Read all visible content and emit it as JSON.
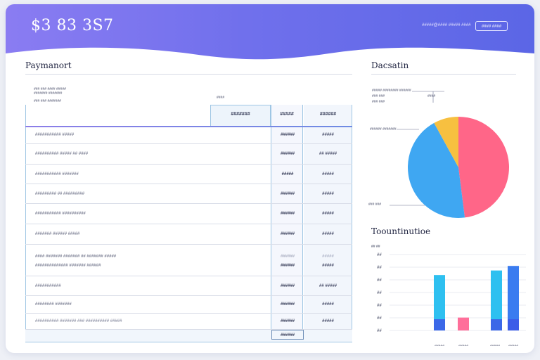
{
  "header": {
    "brand": "$3 83 3S7",
    "meta": "#####@#### ##### ####",
    "button_label": "#### ####"
  },
  "payment": {
    "title": "Paymanort",
    "meta_lines": [
      "### ### #### #####",
      "####### #######",
      "### ### #######"
    ],
    "col_tag": "####",
    "headers": [
      "#######",
      "#####",
      "######"
    ],
    "rows": [
      {
        "name": "########### #####",
        "a": "######",
        "b": "#####"
      },
      {
        "name": "########## #####   ## ####",
        "a": "######",
        "b": "## #####"
      },
      {
        "name": "########### #######",
        "a": "#####",
        "b": "#####"
      },
      {
        "name": "######### ## #########",
        "a": "######",
        "b": "#####"
      },
      {
        "name": "########### ##########",
        "a": "######",
        "b": "#####"
      },
      {
        "name": "####### ###### #####",
        "a": "######",
        "b": "#####"
      },
      {
        "name": "#### ####### ####### ## ####### #####",
        "name2": "############## ####### ######",
        "a": "######",
        "b": "#####"
      },
      {
        "name": "###########",
        "a": "######",
        "b": "## #####"
      },
      {
        "name": "######## #######",
        "a": "######",
        "b": "#####"
      },
      {
        "name": "##########  ####### ### ########## #####",
        "a": "######",
        "b": "#####"
      },
      {
        "name": "",
        "a": "######",
        "b": ""
      }
    ]
  },
  "donation": {
    "title": "Dacsatin",
    "labels": [
      "##### ######## ######",
      "####",
      "###### #######",
      "### ###"
    ],
    "slices": [
      {
        "value": 48,
        "color": "#ff6688"
      },
      {
        "value": 44,
        "color": "#3fa7f2"
      },
      {
        "value": 8,
        "color": "#f7c040"
      }
    ]
  },
  "totals": {
    "title": "Toountinutioe",
    "unit": "## ##",
    "y_labels": [
      "##",
      "##",
      "##",
      "##",
      "##",
      "##",
      "##"
    ],
    "x_labels": [
      "#####",
      "#####",
      "#####",
      "#####"
    ],
    "bars": [
      0.73,
      0.17,
      0.79,
      0.85
    ],
    "colors": [
      "#2ec0f0",
      "#ff6f9a",
      "#2ec0f0",
      "#3a7cf0"
    ]
  }
}
